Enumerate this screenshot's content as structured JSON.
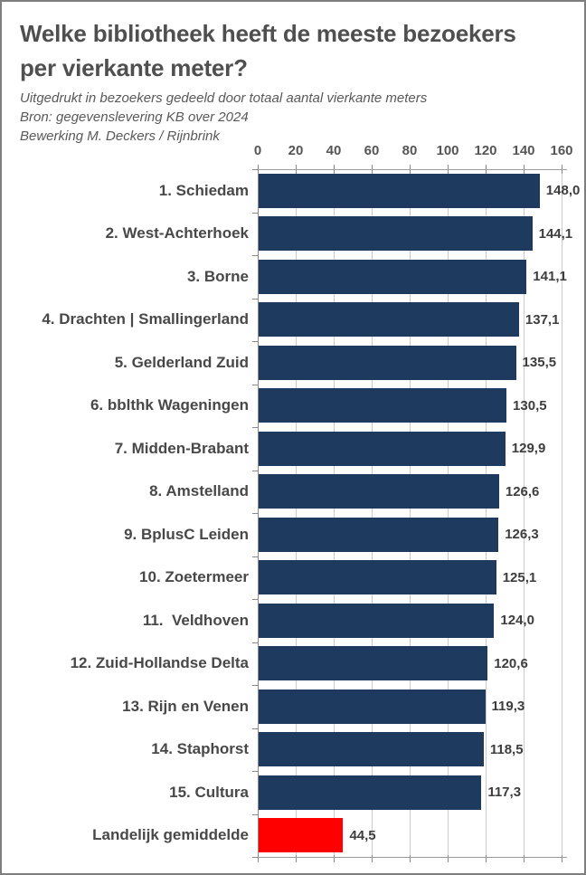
{
  "header": {
    "title": "Welke bibliotheek heeft de meeste bezoekers per vierkante meter?",
    "subtitle": "Uitgedrukt in bezoekers gedeeld door totaal aantal vierkante meters",
    "source": "Bron: gegevenslevering KB over 2024",
    "credit": "Bewerking M. Deckers / Rijnbrink"
  },
  "colors": {
    "bar_default": "#1f3a5f",
    "bar_highlight": "#ff0000",
    "title_text": "#4f4f4f",
    "subtitle_text": "#595959",
    "gridline": "#cbcbcb",
    "axis_line": "#8a8a8a",
    "border": "#7e7e7e"
  },
  "chart_data": {
    "type": "bar",
    "orientation": "horizontal",
    "title": "Welke bibliotheek heeft de meeste bezoekers per vierkante meter?",
    "xlabel": "",
    "ylabel": "",
    "xlim": [
      0,
      160
    ],
    "x_ticks": [
      0,
      20,
      40,
      60,
      80,
      100,
      120,
      140,
      160
    ],
    "value_axis_position": "top",
    "grid": true,
    "legend": "none",
    "categories": [
      "1. Schiedam",
      "2. West-Achterhoek",
      "3. Borne",
      "4. Drachten | Smallingerland",
      "5. Gelderland Zuid",
      "6. bblthk Wageningen",
      "7. Midden-Brabant",
      "8. Amstelland",
      "9. BplusC Leiden",
      "10. Zoetermeer",
      "11.  Veldhoven",
      "12. Zuid-Hollandse Delta",
      "13. Rijn en Venen",
      "14. Staphorst",
      "15. Cultura",
      "Landelijk gemiddelde"
    ],
    "values": [
      148.0,
      144.1,
      141.1,
      137.1,
      135.5,
      130.5,
      129.9,
      126.6,
      126.3,
      125.1,
      124.0,
      120.6,
      119.3,
      118.5,
      117.3,
      44.5
    ],
    "value_labels": [
      "148,0",
      "144,1",
      "141,1",
      "137,1",
      "135,5",
      "130,5",
      "129,9",
      "126,6",
      "126,3",
      "125,1",
      "124,0",
      "120,6",
      "119,3",
      "118,5",
      "117,3",
      "44,5"
    ],
    "bar_colors": [
      "#1f3a5f",
      "#1f3a5f",
      "#1f3a5f",
      "#1f3a5f",
      "#1f3a5f",
      "#1f3a5f",
      "#1f3a5f",
      "#1f3a5f",
      "#1f3a5f",
      "#1f3a5f",
      "#1f3a5f",
      "#1f3a5f",
      "#1f3a5f",
      "#1f3a5f",
      "#1f3a5f",
      "#ff0000"
    ]
  }
}
